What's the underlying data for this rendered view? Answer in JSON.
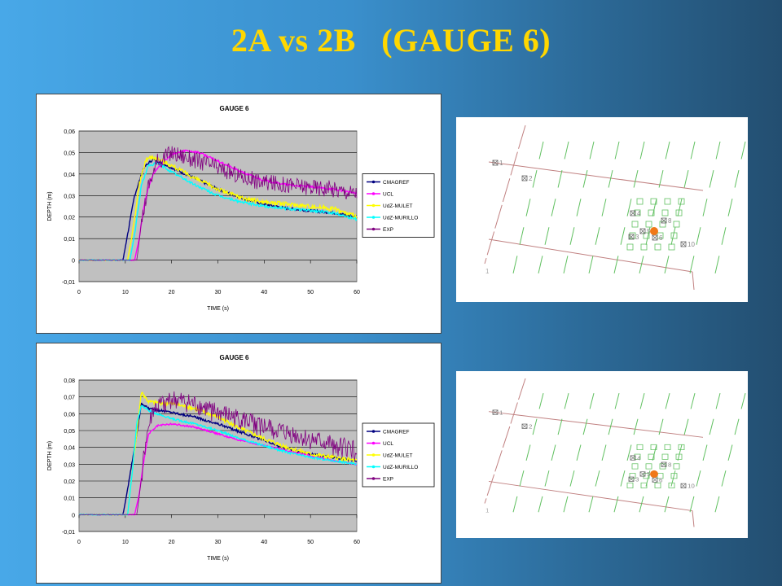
{
  "slide": {
    "title": "2A vs 2B   (GAUGE 6)"
  },
  "chart_data": [
    {
      "type": "line",
      "title": "GAUGE 6",
      "xlabel": "TIME (s)",
      "ylabel": "DEPTH (m)",
      "xlim": [
        0,
        60
      ],
      "ylim": [
        -0.01,
        0.06
      ],
      "x_ticks": [
        0,
        10,
        20,
        30,
        40,
        50,
        60
      ],
      "y_ticks": [
        -0.01,
        0,
        0.01,
        0.02,
        0.03,
        0.04,
        0.05,
        0.06
      ],
      "y_tick_labels": [
        "-0,01",
        "0",
        "0,01",
        "0,02",
        "0,03",
        "0,04",
        "0,05",
        "0,06"
      ],
      "grid": "horizontal",
      "legend": "right",
      "series": [
        {
          "name": "CMAGREF",
          "color": "#000080",
          "noise": 0.0006,
          "x": [
            0,
            9.5,
            10.5,
            12,
            14,
            16,
            17,
            20,
            25,
            30,
            35,
            40,
            45,
            50,
            55,
            60
          ],
          "y": [
            0,
            0,
            0.012,
            0.03,
            0.043,
            0.047,
            0.046,
            0.043,
            0.038,
            0.033,
            0.029,
            0.026,
            0.024,
            0.023,
            0.022,
            0.02
          ]
        },
        {
          "name": "UCL",
          "color": "#ff00ff",
          "noise": 0.0005,
          "x": [
            0,
            12,
            13,
            14,
            15,
            16,
            18,
            20,
            23,
            26,
            30,
            35,
            40,
            45,
            50,
            55,
            60
          ],
          "y": [
            0,
            0,
            0.01,
            0.025,
            0.034,
            0.04,
            0.045,
            0.049,
            0.051,
            0.05,
            0.046,
            0.041,
            0.037,
            0.035,
            0.034,
            0.033,
            0.031
          ]
        },
        {
          "name": "UdZ-MULET",
          "color": "#ffff00",
          "noise": 0.001,
          "x": [
            0,
            10.5,
            11.5,
            13,
            14.5,
            16,
            18,
            20,
            25,
            30,
            35,
            40,
            45,
            50,
            55,
            60
          ],
          "y": [
            0,
            0,
            0.012,
            0.035,
            0.047,
            0.048,
            0.046,
            0.044,
            0.038,
            0.033,
            0.029,
            0.027,
            0.026,
            0.025,
            0.024,
            0.02
          ]
        },
        {
          "name": "UdZ-MURILLO",
          "color": "#00ffff",
          "noise": 0.0006,
          "x": [
            0,
            11,
            12,
            13.5,
            15,
            17,
            20,
            25,
            30,
            35,
            40,
            45,
            50,
            55,
            60
          ],
          "y": [
            0,
            0,
            0.012,
            0.035,
            0.044,
            0.045,
            0.041,
            0.035,
            0.03,
            0.027,
            0.025,
            0.024,
            0.023,
            0.022,
            0.019
          ]
        },
        {
          "name": "EXP",
          "color": "#800080",
          "noise": 0.004,
          "x": [
            0,
            12.5,
            13.5,
            15,
            17,
            20,
            23,
            26,
            30,
            35,
            40,
            45,
            50,
            55,
            60
          ],
          "y": [
            0,
            0,
            0.018,
            0.035,
            0.046,
            0.05,
            0.048,
            0.046,
            0.043,
            0.039,
            0.036,
            0.035,
            0.034,
            0.033,
            0.031
          ]
        }
      ]
    },
    {
      "type": "line",
      "title": "GAUGE 6",
      "xlabel": "TIME (s)",
      "ylabel": "DEPTH (m)",
      "xlim": [
        0,
        60
      ],
      "ylim": [
        -0.01,
        0.08
      ],
      "x_ticks": [
        0,
        10,
        20,
        30,
        40,
        50,
        60
      ],
      "y_ticks": [
        -0.01,
        0,
        0.01,
        0.02,
        0.03,
        0.04,
        0.05,
        0.06,
        0.07,
        0.08
      ],
      "y_tick_labels": [
        "-0,01",
        "0",
        "0,01",
        "0,02",
        "0,03",
        "0,04",
        "0,05",
        "0,06",
        "0,07",
        "0,08"
      ],
      "grid": "horizontal",
      "legend": "right",
      "series": [
        {
          "name": "CMAGREF",
          "color": "#000080",
          "noise": 0.0007,
          "x": [
            0,
            9.5,
            10.5,
            12,
            13.5,
            15,
            20,
            25,
            30,
            35,
            40,
            45,
            50,
            55,
            60
          ],
          "y": [
            0,
            0,
            0.015,
            0.04,
            0.066,
            0.063,
            0.061,
            0.058,
            0.054,
            0.049,
            0.044,
            0.039,
            0.036,
            0.034,
            0.032
          ]
        },
        {
          "name": "UCL",
          "color": "#ff00ff",
          "noise": 0.0005,
          "x": [
            0,
            12,
            13,
            14,
            15,
            17,
            20,
            25,
            30,
            35,
            40,
            45,
            50,
            55,
            60
          ],
          "y": [
            0,
            0,
            0.012,
            0.032,
            0.048,
            0.053,
            0.054,
            0.052,
            0.048,
            0.044,
            0.041,
            0.038,
            0.035,
            0.032,
            0.03
          ]
        },
        {
          "name": "UdZ-MULET",
          "color": "#ffff00",
          "noise": 0.0012,
          "x": [
            0,
            10.5,
            11.5,
            12.5,
            13.5,
            15,
            20,
            25,
            30,
            35,
            40,
            45,
            50,
            55,
            60
          ],
          "y": [
            0,
            0,
            0.025,
            0.05,
            0.073,
            0.067,
            0.066,
            0.063,
            0.058,
            0.051,
            0.045,
            0.04,
            0.036,
            0.034,
            0.032
          ]
        },
        {
          "name": "UdZ-MURILLO",
          "color": "#00ffff",
          "noise": 0.0006,
          "x": [
            0,
            10.5,
            11.5,
            12.5,
            13.5,
            15,
            20,
            25,
            30,
            35,
            40,
            45,
            50,
            55,
            60
          ],
          "y": [
            0,
            0,
            0.025,
            0.055,
            0.065,
            0.062,
            0.057,
            0.054,
            0.05,
            0.045,
            0.041,
            0.037,
            0.034,
            0.032,
            0.03
          ]
        },
        {
          "name": "EXP",
          "color": "#800080",
          "noise": 0.006,
          "x": [
            0,
            12.5,
            13.5,
            14.5,
            16,
            20,
            25,
            30,
            35,
            40,
            45,
            50,
            55,
            60
          ],
          "y": [
            0,
            0,
            0.022,
            0.045,
            0.062,
            0.068,
            0.065,
            0.06,
            0.056,
            0.052,
            0.048,
            0.044,
            0.041,
            0.038
          ]
        }
      ]
    }
  ],
  "maps": [
    {
      "gauge_labels": [
        "1",
        "2",
        "3",
        "4",
        "5",
        "6",
        "8",
        "10"
      ],
      "corner_label": "1",
      "highlight_color": "#f07818"
    },
    {
      "gauge_labels": [
        "1",
        "2",
        "3",
        "4",
        "5",
        "6",
        "8",
        "10"
      ],
      "corner_label": "1",
      "highlight_color": "#f07818"
    }
  ]
}
